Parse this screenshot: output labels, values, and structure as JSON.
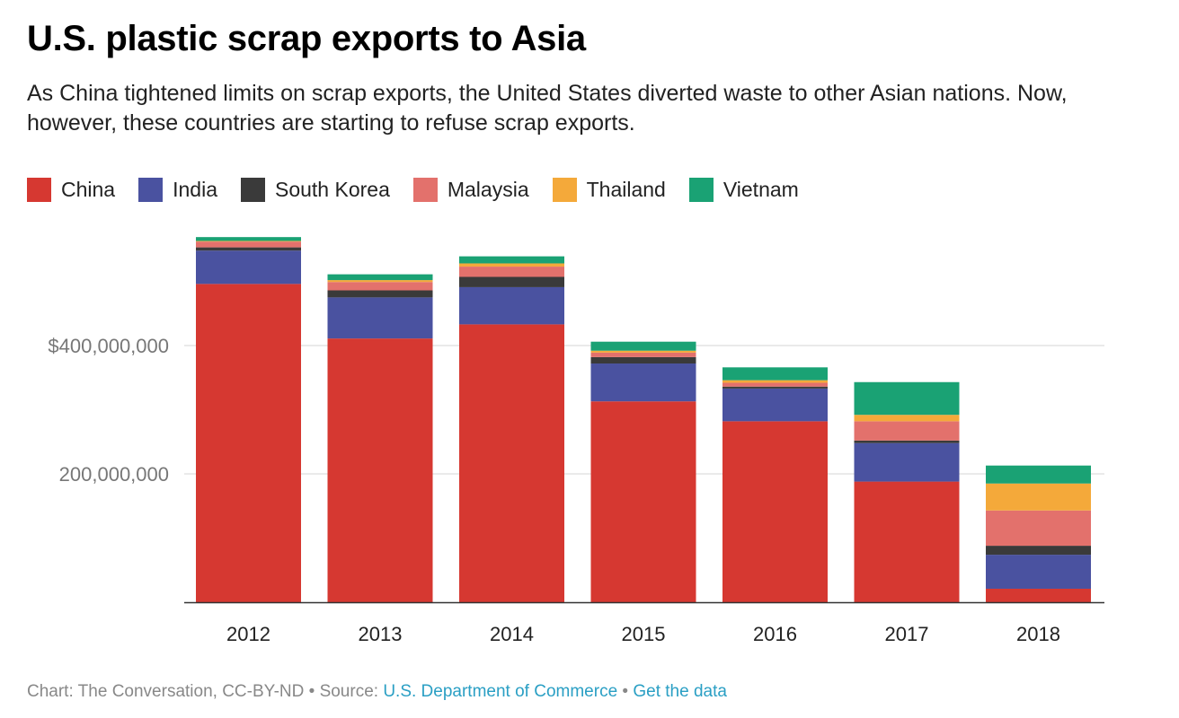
{
  "title": "U.S. plastic scrap exports to Asia",
  "subtitle": "As China tightened limits on scrap exports, the United States diverted waste to other Asian nations. Now, however, these countries are starting to refuse scrap exports.",
  "legend": {
    "items": [
      {
        "label": "China",
        "color": "#d63831"
      },
      {
        "label": "India",
        "color": "#4a52a0"
      },
      {
        "label": "South Korea",
        "color": "#3a3a3a"
      },
      {
        "label": "Malaysia",
        "color": "#e3716c"
      },
      {
        "label": "Thailand",
        "color": "#f4a93a"
      },
      {
        "label": "Vietnam",
        "color": "#1aa274"
      }
    ]
  },
  "footer": {
    "credit": "Chart: The Conversation, CC-BY-ND",
    "separator": " • ",
    "source_prefix": "Source: ",
    "source_link": "U.S. Department of Commerce",
    "data_link": "Get the data"
  },
  "chart_data": {
    "type": "bar",
    "stacked": true,
    "categories": [
      "2012",
      "2013",
      "2014",
      "2015",
      "2016",
      "2017",
      "2018"
    ],
    "series": [
      {
        "name": "China",
        "color": "#d63831",
        "values": [
          496000000,
          411000000,
          433000000,
          313000000,
          282000000,
          188000000,
          21000000
        ]
      },
      {
        "name": "India",
        "color": "#4a52a0",
        "values": [
          52000000,
          64000000,
          58000000,
          59000000,
          51000000,
          60000000,
          53000000
        ]
      },
      {
        "name": "South Korea",
        "color": "#3a3a3a",
        "values": [
          5000000,
          11000000,
          16000000,
          10000000,
          3000000,
          4000000,
          14000000
        ]
      },
      {
        "name": "Malaysia",
        "color": "#e3716c",
        "values": [
          9000000,
          13000000,
          16000000,
          7000000,
          6000000,
          30000000,
          55000000
        ]
      },
      {
        "name": "Thailand",
        "color": "#f4a93a",
        "values": [
          1000000,
          3000000,
          5000000,
          3000000,
          4000000,
          10000000,
          42000000
        ]
      },
      {
        "name": "Vietnam",
        "color": "#1aa274",
        "values": [
          6000000,
          9000000,
          11000000,
          14000000,
          20000000,
          51000000,
          28000000
        ]
      }
    ],
    "y_ticks": [
      {
        "value": 200000000,
        "label": "200,000,000"
      },
      {
        "value": 400000000,
        "label": "$400,000,000"
      }
    ],
    "ylim": [
      0,
      570000000
    ],
    "grid": true,
    "legend_position": "top-left"
  }
}
